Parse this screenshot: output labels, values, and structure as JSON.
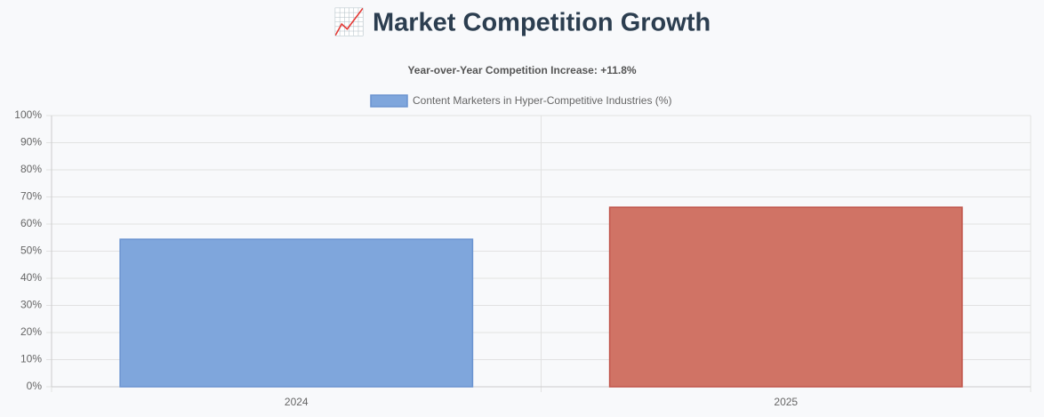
{
  "chart_data": {
    "type": "bar",
    "title": "📈 Market Competition Growth",
    "subtitle": "Year-over-Year Competition Increase: +11.8%",
    "categories": [
      "2024",
      "2025"
    ],
    "series": [
      {
        "name": "Content Marketers in Hyper-Competitive Industries (%)",
        "color": "#7fa6dc",
        "colors": [
          "#7fa6dc",
          "#d07365"
        ],
        "border_colors": [
          "#6a93d0",
          "#c0544a"
        ],
        "values": [
          54.4,
          66.2
        ]
      }
    ],
    "ylim": [
      0,
      100
    ],
    "yticks": [
      {
        "value": 0,
        "label": "0%"
      },
      {
        "value": 10,
        "label": "10%"
      },
      {
        "value": 20,
        "label": "20%"
      },
      {
        "value": 30,
        "label": "30%"
      },
      {
        "value": 40,
        "label": "40%"
      },
      {
        "value": 50,
        "label": "50%"
      },
      {
        "value": 60,
        "label": "60%"
      },
      {
        "value": 70,
        "label": "70%"
      },
      {
        "value": 80,
        "label": "80%"
      },
      {
        "value": 90,
        "label": "90%"
      },
      {
        "value": 100,
        "label": "100%"
      }
    ],
    "grid": true
  }
}
